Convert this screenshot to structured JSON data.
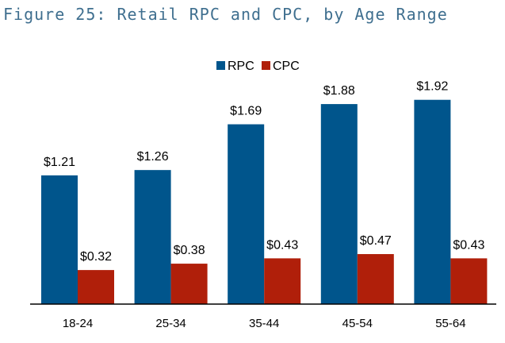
{
  "figure_title": "Figure 25: Retail RPC and CPC, by Age Range",
  "chart_data": {
    "type": "bar",
    "categories": [
      "18-24",
      "25-34",
      "35-44",
      "45-54",
      "55-64"
    ],
    "series": [
      {
        "name": "RPC",
        "color": "#00558c",
        "values": [
          1.21,
          1.26,
          1.69,
          1.88,
          1.92
        ],
        "labels": [
          "$1.21",
          "$1.26",
          "$1.69",
          "$1.88",
          "$1.92"
        ]
      },
      {
        "name": "CPC",
        "color": "#b01f0a",
        "values": [
          0.32,
          0.38,
          0.43,
          0.47,
          0.43
        ],
        "labels": [
          "$0.32",
          "$0.38",
          "$0.43",
          "$0.47",
          "$0.43"
        ]
      }
    ],
    "title": "",
    "xlabel": "",
    "ylabel": "",
    "ylim": [
      0,
      2.0
    ],
    "grid": false,
    "legend_position": "top-center"
  }
}
